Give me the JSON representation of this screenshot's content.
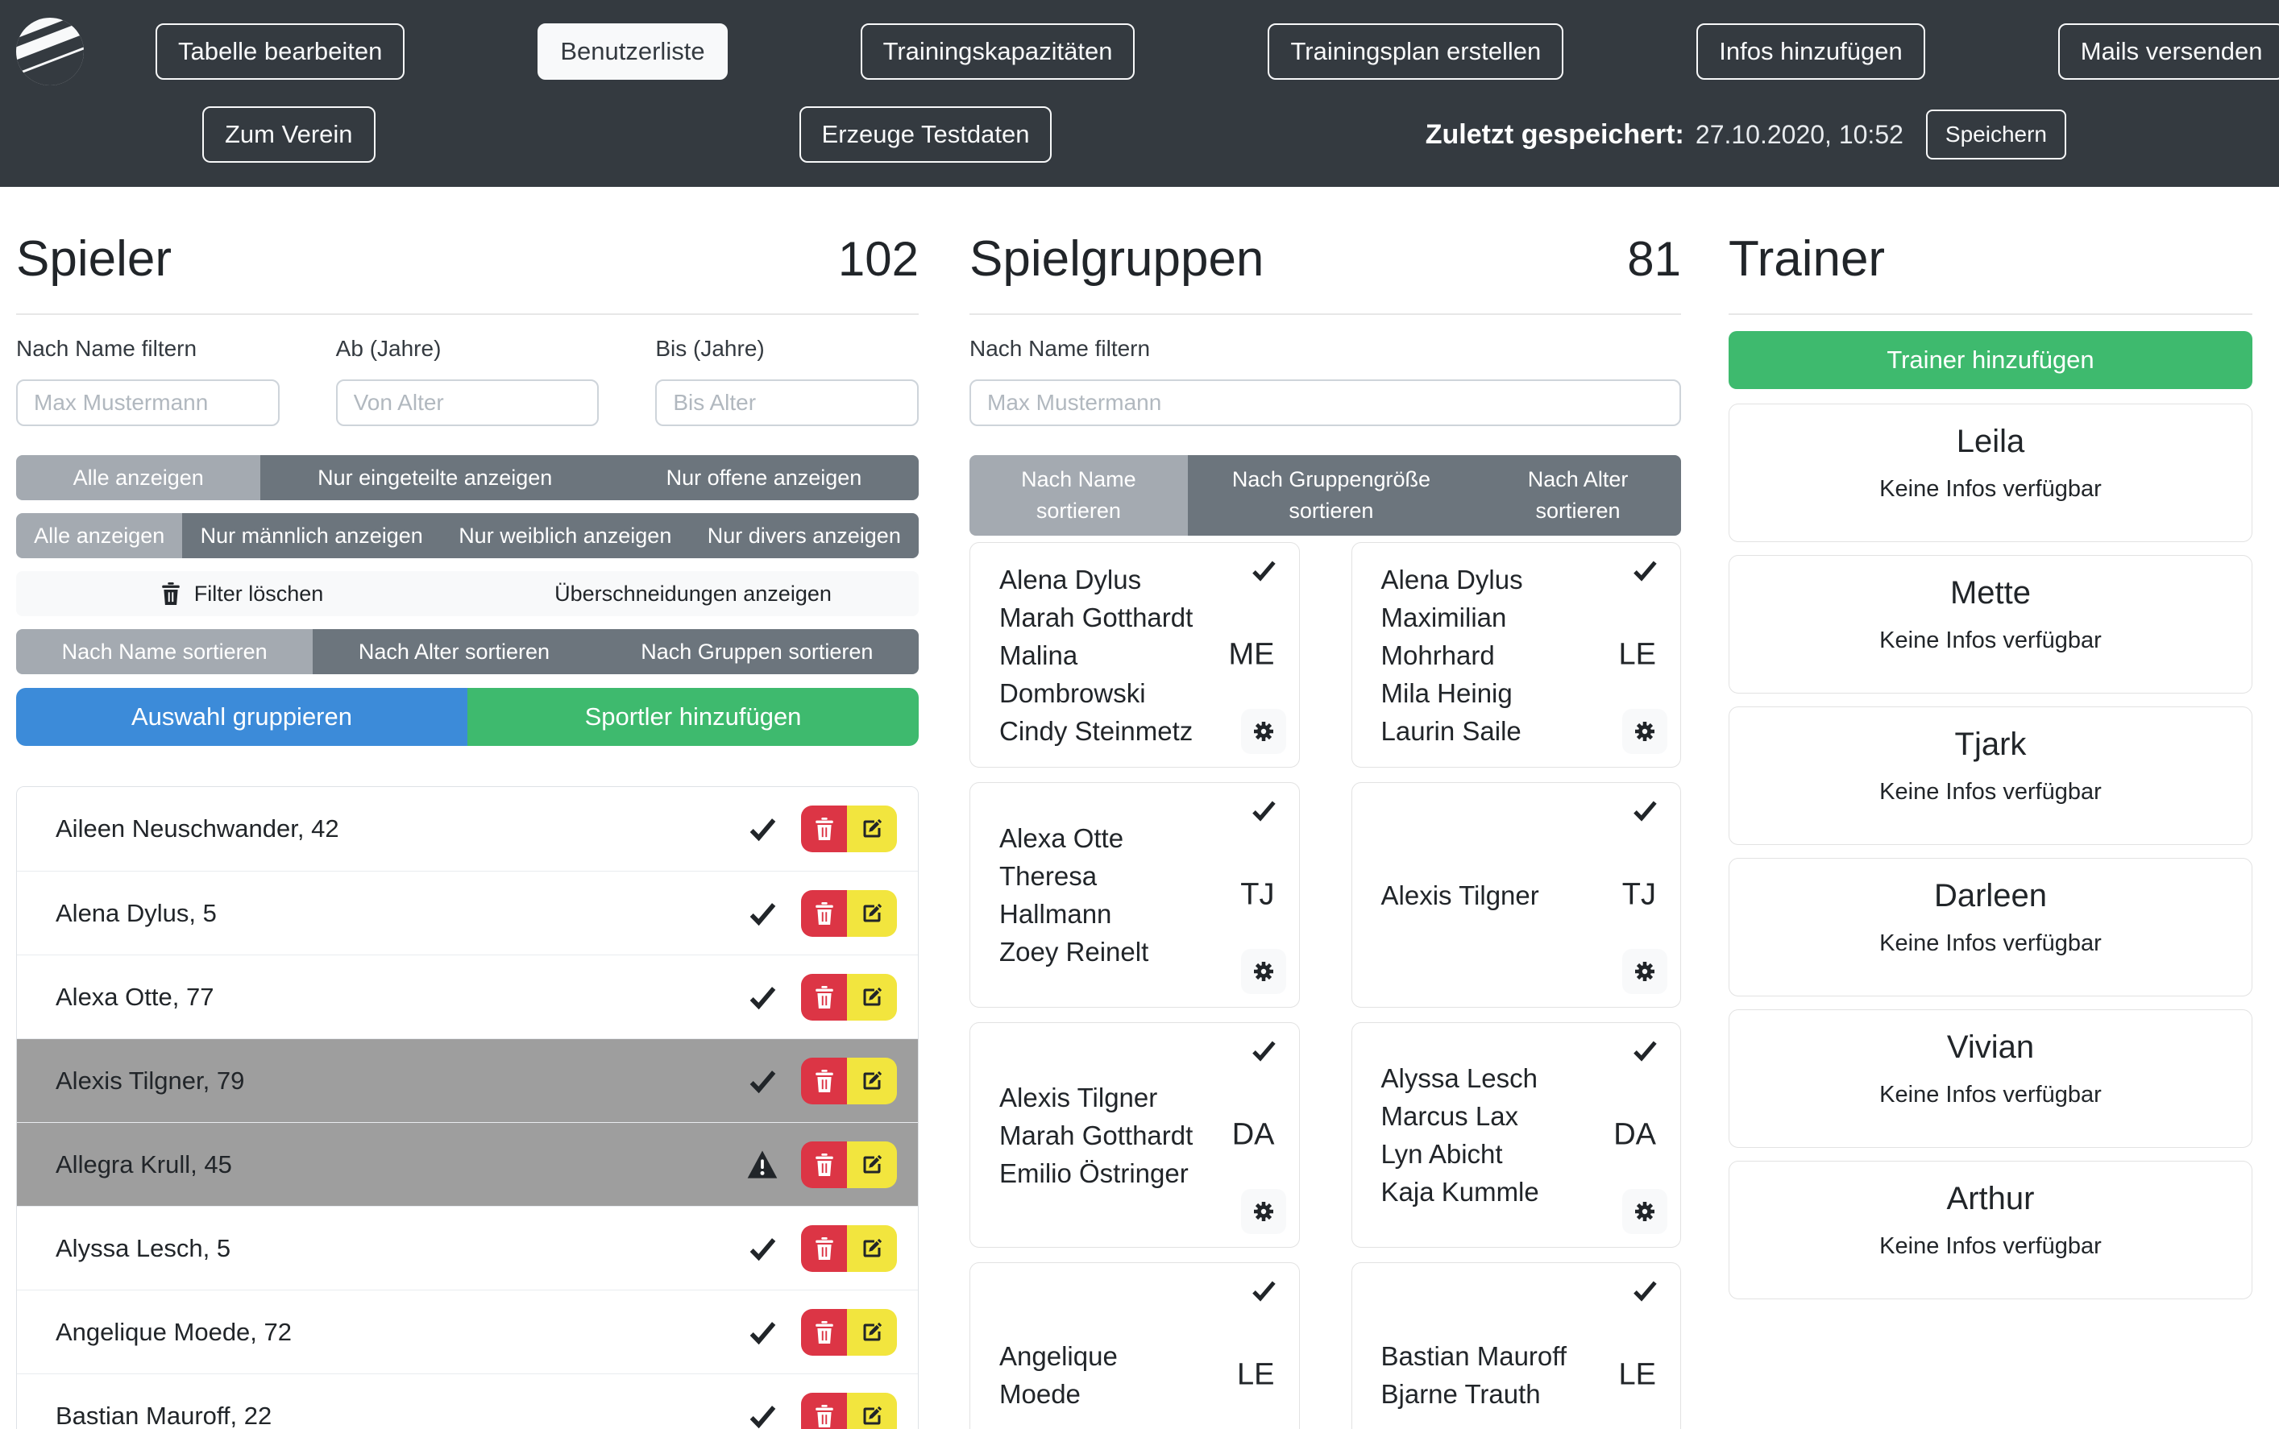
{
  "colors": {
    "header_bg": "#343a40",
    "primary_blue": "#3c8bd9",
    "success_green": "#3eba6e",
    "danger_red": "#dc3545",
    "warning_yellow": "#f2e53e",
    "selected_row_gray": "#9e9e9e",
    "segment_gray": "#6c757d",
    "segment_active_gray": "#a4aab1"
  },
  "header": {
    "nav": [
      {
        "label": "Tabelle bearbeiten",
        "active": false
      },
      {
        "label": "Benutzerliste",
        "active": true
      },
      {
        "label": "Trainingskapazitäten",
        "active": false
      },
      {
        "label": "Trainingsplan erstellen",
        "active": false
      },
      {
        "label": "Infos hinzufügen",
        "active": false
      },
      {
        "label": "Mails versenden",
        "active": false
      }
    ],
    "nav2": [
      "Zum Verein",
      "Erzeuge Testdaten"
    ],
    "last_saved_label": "Zuletzt gespeichert:",
    "last_saved_value": "27.10.2020, 10:52",
    "save_button": "Speichern"
  },
  "players": {
    "title": "Spieler",
    "count": "102",
    "name_filter_label": "Nach Name filtern",
    "age_from_label": "Ab (Jahre)",
    "age_to_label": "Bis (Jahre)",
    "name_filter_placeholder": "Max Mustermann",
    "age_from_placeholder": "Von Alter",
    "age_to_placeholder": "Bis Alter",
    "assignment_filter": [
      {
        "label": "Alle anzeigen",
        "active": true
      },
      {
        "label": "Nur eingeteilte anzeigen",
        "active": false
      },
      {
        "label": "Nur offene anzeigen",
        "active": false
      }
    ],
    "gender_filter": [
      {
        "label": "Alle anzeigen",
        "active": true
      },
      {
        "label": "Nur männlich anzeigen",
        "active": false
      },
      {
        "label": "Nur weiblich anzeigen",
        "active": false
      },
      {
        "label": "Nur divers anzeigen",
        "active": false
      }
    ],
    "clear_filter_label": "Filter löschen",
    "overlaps_label": "Überschneidungen anzeigen",
    "sort_options": [
      {
        "label": "Nach Name sortieren",
        "active": true
      },
      {
        "label": "Nach Alter sortieren",
        "active": false
      },
      {
        "label": "Nach Gruppen sortieren",
        "active": false
      }
    ],
    "group_selection_button": "Auswahl gruppieren",
    "add_player_button": "Sportler hinzufügen",
    "rows": [
      {
        "name": "Aileen Neuschwander, 42",
        "status": "ok",
        "selected": false
      },
      {
        "name": "Alena Dylus, 5",
        "status": "ok",
        "selected": false
      },
      {
        "name": "Alexa Otte, 77",
        "status": "ok",
        "selected": false
      },
      {
        "name": "Alexis Tilgner, 79",
        "status": "ok",
        "selected": true
      },
      {
        "name": "Allegra Krull, 45",
        "status": "warning",
        "selected": true
      },
      {
        "name": "Alyssa Lesch, 5",
        "status": "ok",
        "selected": false
      },
      {
        "name": "Angelique Moede, 72",
        "status": "ok",
        "selected": false
      },
      {
        "name": "Bastian Mauroff, 22",
        "status": "ok",
        "selected": false
      }
    ]
  },
  "groups": {
    "title": "Spielgruppen",
    "count": "81",
    "name_filter_label": "Nach Name filtern",
    "name_filter_placeholder": "Max Mustermann",
    "sort_options": [
      {
        "label": "Nach Name sortieren",
        "active": true
      },
      {
        "label": "Nach Gruppengröße sortieren",
        "active": false
      },
      {
        "label": "Nach Alter sortieren",
        "active": false
      }
    ],
    "cards": [
      {
        "members": [
          "Alena Dylus",
          "Marah Gotthardt",
          "Malina Dombrowski",
          "Cindy Steinmetz"
        ],
        "tag": "ME"
      },
      {
        "members": [
          "Alena Dylus",
          "Maximilian Mohrhard",
          "Mila Heinig",
          "Laurin Saile"
        ],
        "tag": "LE"
      },
      {
        "members": [
          "Alexa Otte",
          "Theresa Hallmann",
          "Zoey Reinelt"
        ],
        "tag": "TJ"
      },
      {
        "members": [
          "Alexis Tilgner"
        ],
        "tag": "TJ"
      },
      {
        "members": [
          "Alexis Tilgner",
          "Marah Gotthardt",
          "Emilio Östringer"
        ],
        "tag": "DA"
      },
      {
        "members": [
          "Alyssa Lesch",
          "Marcus Lax",
          "Lyn Abicht",
          "Kaja Kummle"
        ],
        "tag": "DA"
      },
      {
        "members": [
          "Angelique Moede"
        ],
        "tag": "LE"
      },
      {
        "members": [
          "Bastian Mauroff",
          "Bjarne Trauth"
        ],
        "tag": "LE"
      }
    ]
  },
  "trainers": {
    "title": "Trainer",
    "add_button": "Trainer hinzufügen",
    "cards": [
      {
        "name": "Leila",
        "info": "Keine Infos verfügbar"
      },
      {
        "name": "Mette",
        "info": "Keine Infos verfügbar"
      },
      {
        "name": "Tjark",
        "info": "Keine Infos verfügbar"
      },
      {
        "name": "Darleen",
        "info": "Keine Infos verfügbar"
      },
      {
        "name": "Vivian",
        "info": "Keine Infos verfügbar"
      },
      {
        "name": "Arthur",
        "info": "Keine Infos verfügbar"
      }
    ]
  }
}
